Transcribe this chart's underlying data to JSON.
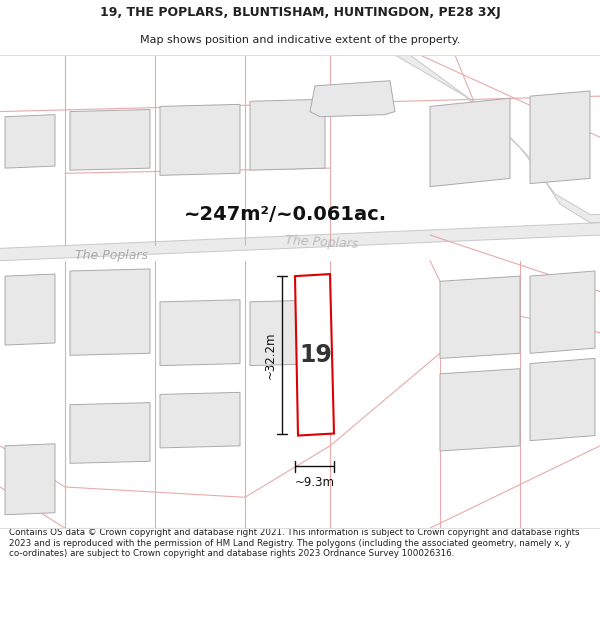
{
  "title_line1": "19, THE POPLARS, BLUNTISHAM, HUNTINGDON, PE28 3XJ",
  "title_line2": "Map shows position and indicative extent of the property.",
  "area_text": "~247m²/~0.061ac.",
  "property_number": "19",
  "dim_vertical": "~32.2m",
  "dim_horizontal": "~9.3m",
  "road_label1": "The Poplars",
  "road_label2": "The Poplars",
  "footer_text": "Contains OS data © Crown copyright and database right 2021. This information is subject to Crown copyright and database rights 2023 and is reproduced with the permission of HM Land Registry. The polygons (including the associated geometry, namely x, y co-ordinates) are subject to Crown copyright and database rights 2023 Ordnance Survey 100026316.",
  "bg_color": "#ffffff",
  "map_bg": "#ffffff",
  "property_fill": "#ffffff",
  "property_edge": "#dd0000",
  "building_fill": "#e8e8e8",
  "building_edge": "#aaaaaa",
  "road_line_color": "#e8aaaa",
  "road_band_color": "#eeeeee",
  "text_color": "#222222",
  "road_text_color": "#aaaaaa",
  "dim_color": "#111111",
  "area_text_color": "#111111"
}
